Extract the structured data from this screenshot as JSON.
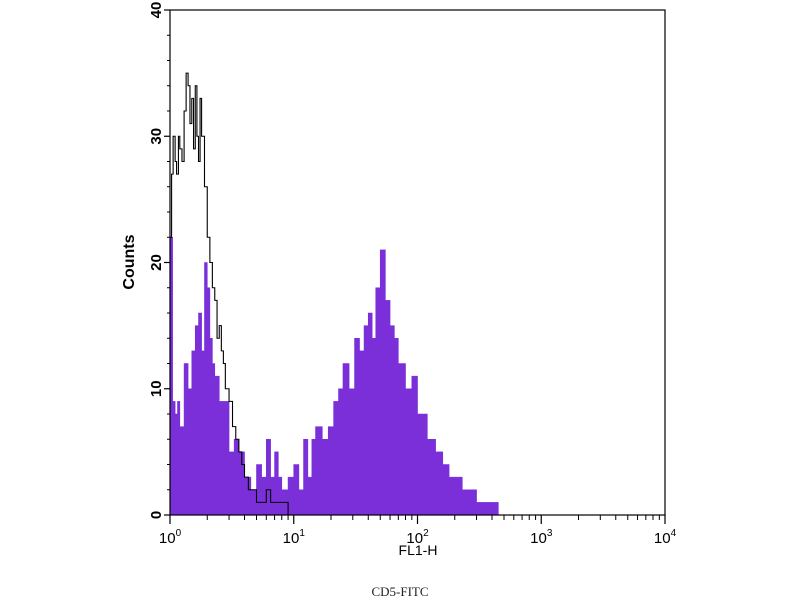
{
  "caption": "CD5-FITC",
  "chart_data": {
    "type": "area",
    "xlabel": "FL1-H",
    "ylabel": "Counts",
    "xscale": "log",
    "xlim": [
      1,
      10000
    ],
    "ylim": [
      0,
      40
    ],
    "x_ticks": [
      {
        "base": "10",
        "exp": "0",
        "value": 1
      },
      {
        "base": "10",
        "exp": "1",
        "value": 10
      },
      {
        "base": "10",
        "exp": "2",
        "value": 100
      },
      {
        "base": "10",
        "exp": "3",
        "value": 1000
      },
      {
        "base": "10",
        "exp": "4",
        "value": 10000
      }
    ],
    "y_ticks": [
      "0",
      "10",
      "20",
      "30",
      "40"
    ],
    "y_tick_values": [
      0,
      10,
      20,
      30,
      40
    ],
    "series": [
      {
        "style": "filled",
        "color": "#7a2fd9",
        "x": [
          1.0,
          1.05,
          1.1,
          1.15,
          1.2,
          1.3,
          1.4,
          1.5,
          1.6,
          1.7,
          1.8,
          1.9,
          2.0,
          2.1,
          2.2,
          2.3,
          2.5,
          2.7,
          3.0,
          3.3,
          3.6,
          4.0,
          4.5,
          5.0,
          5.5,
          6.0,
          6.5,
          7.0,
          7.5,
          8.0,
          9.0,
          10.0,
          11.0,
          12.0,
          13.0,
          14.0,
          15.0,
          17.0,
          19.0,
          21.0,
          23.0,
          25.0,
          28.0,
          31.0,
          34.0,
          37.0,
          40.0,
          43.0,
          46.0,
          50.0,
          55.0,
          60.0,
          65.0,
          70.0,
          80.0,
          90.0,
          100.0,
          110.0,
          120.0,
          140.0,
          160.0,
          180.0,
          200.0,
          230.0,
          260.0,
          300.0,
          350.0,
          400.0,
          450.0
        ],
        "y": [
          22,
          9,
          8,
          9,
          7,
          12,
          10,
          13,
          15,
          16,
          13,
          20,
          18,
          14,
          12,
          11,
          9,
          9,
          5,
          6,
          5,
          3,
          2,
          4,
          3,
          6,
          3,
          5,
          3,
          2,
          3,
          4,
          2,
          6,
          3,
          6,
          7,
          6,
          7,
          9,
          10,
          12,
          10,
          14,
          13,
          15,
          16,
          14,
          18,
          21,
          17,
          15,
          14,
          12,
          10,
          11,
          8,
          8,
          6,
          5,
          4,
          3,
          3,
          2,
          2,
          1,
          1,
          1,
          0
        ]
      },
      {
        "style": "outline",
        "color": "#000000",
        "x": [
          1.0,
          1.03,
          1.06,
          1.1,
          1.13,
          1.17,
          1.2,
          1.25,
          1.3,
          1.35,
          1.4,
          1.45,
          1.5,
          1.55,
          1.6,
          1.65,
          1.7,
          1.75,
          1.8,
          1.9,
          2.0,
          2.1,
          2.2,
          2.3,
          2.4,
          2.5,
          2.6,
          2.7,
          2.8,
          3.0,
          3.2,
          3.4,
          3.6,
          3.8,
          4.0,
          4.3,
          4.6,
          5.0,
          5.5,
          6.0,
          6.5,
          7.0,
          8.0,
          9.0,
          10.0
        ],
        "y": [
          22,
          27,
          30,
          28,
          27,
          30,
          29,
          28,
          32,
          35,
          34,
          31,
          33,
          29,
          34,
          30,
          28,
          33,
          30,
          26,
          22,
          20,
          18,
          17,
          14,
          15,
          13,
          12,
          10,
          9,
          7,
          6,
          5,
          4,
          3,
          2,
          2,
          1,
          1,
          2,
          1,
          1,
          1,
          0,
          0
        ]
      }
    ]
  }
}
